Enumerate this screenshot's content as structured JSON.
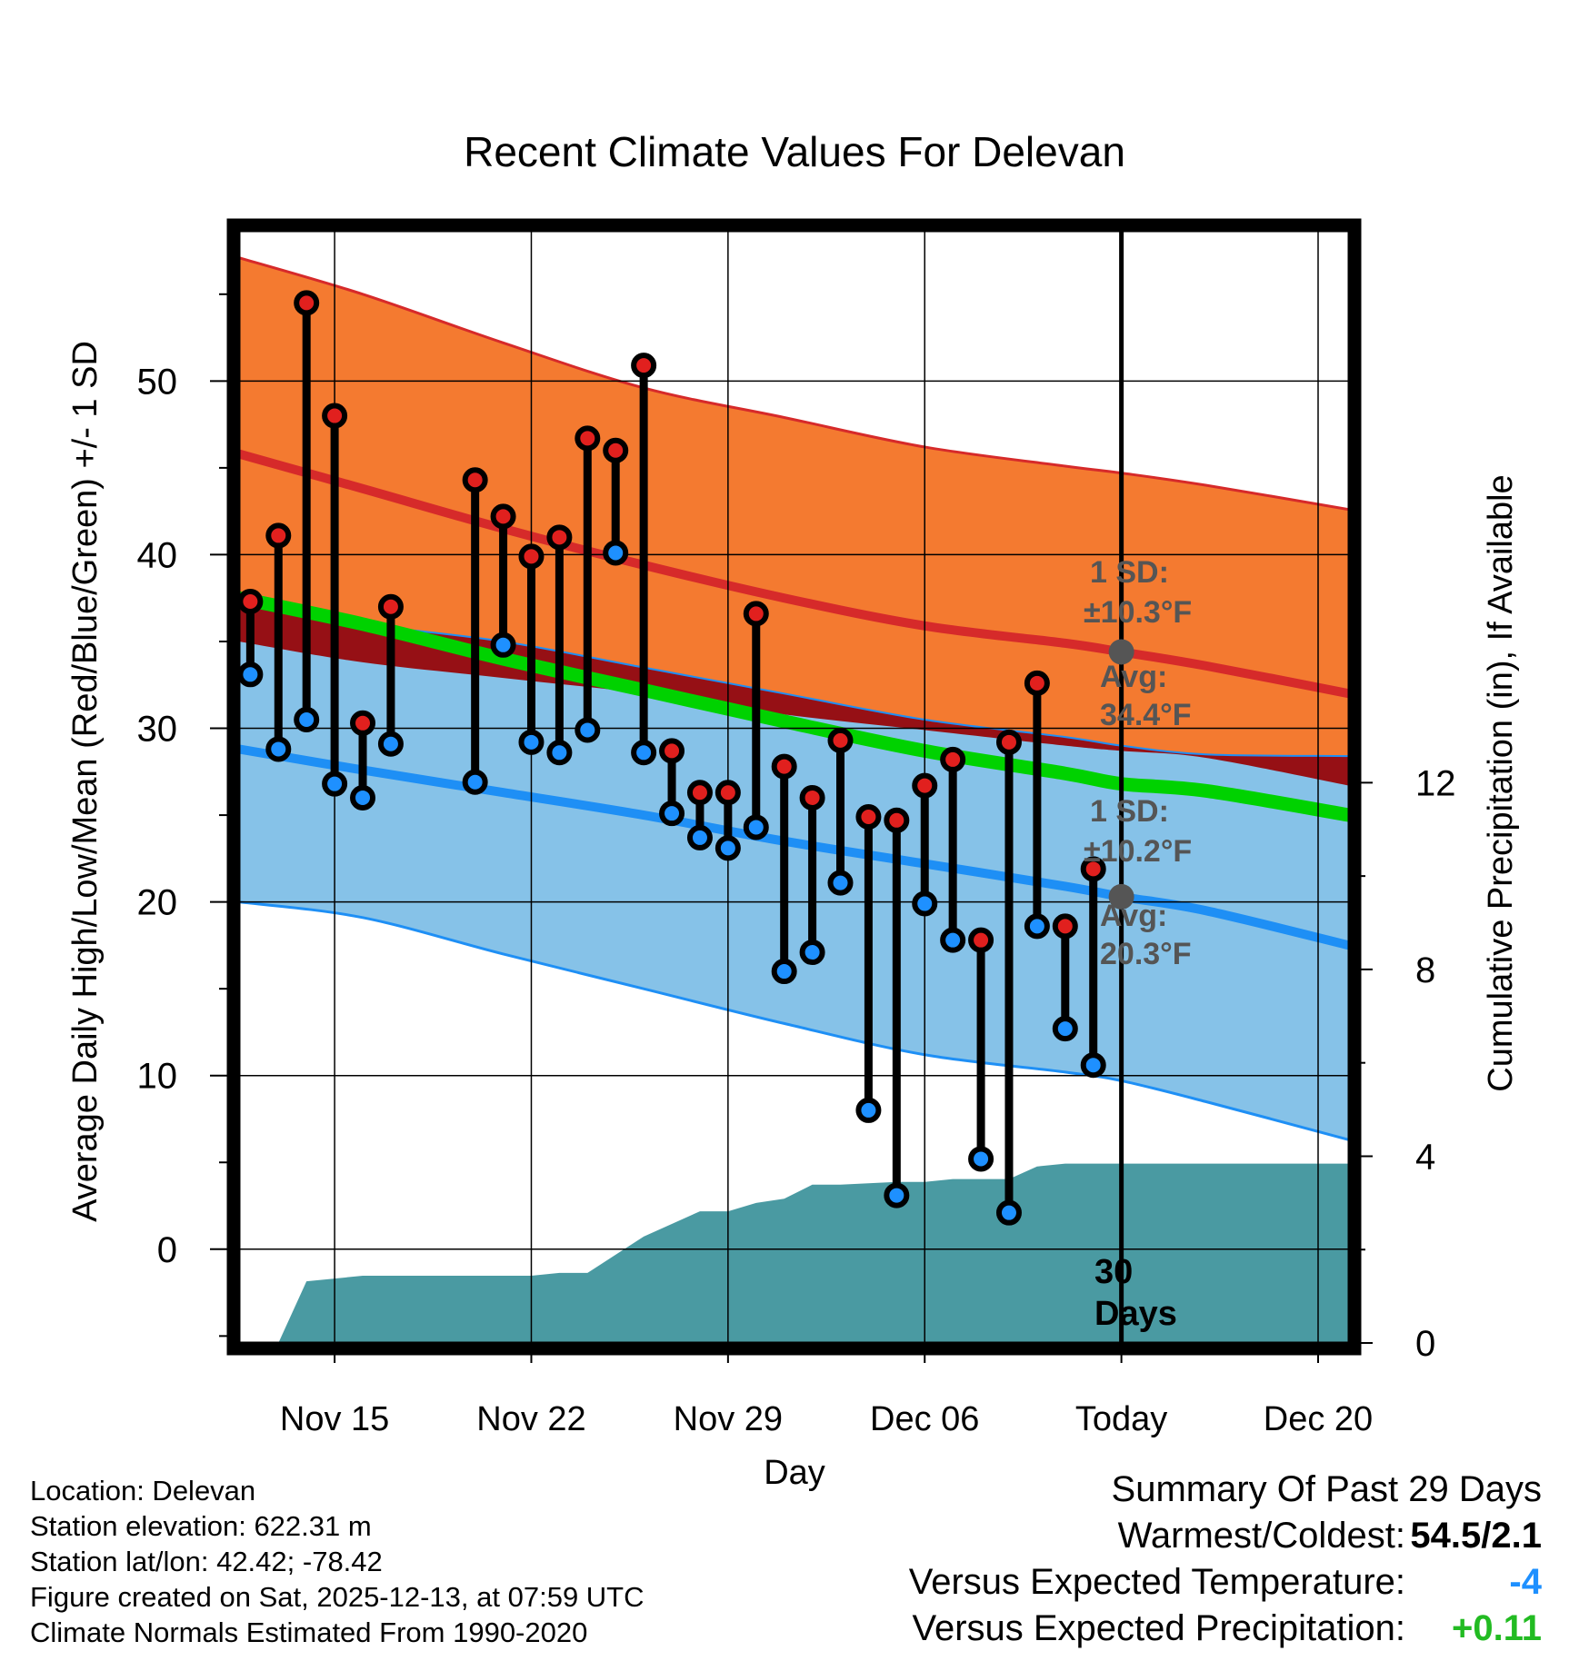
{
  "chart_data": {
    "type": "line",
    "title": "Recent Climate Values For Delevan",
    "xlabel": "Day",
    "ylabel": "Average Daily High/Low/Mean (Red/Blue/Green) +/- 1 SD",
    "y2label": "Cumulative Precipitation (in), If Available",
    "ylim": [
      -5.4,
      58.6
    ],
    "y2lim": [
      0,
      23.8
    ],
    "xlim": [
      10.6,
      50.1
    ],
    "x_day_unit": "days since Nov 1 (Nov 15 = 14)",
    "x_ticks": [
      {
        "x": 14,
        "label": "Nov 15"
      },
      {
        "x": 21,
        "label": "Nov 22"
      },
      {
        "x": 28,
        "label": "Nov 29"
      },
      {
        "x": 35,
        "label": "Dec 06"
      },
      {
        "x": 42,
        "label": "Today"
      },
      {
        "x": 49,
        "label": "Dec 20"
      }
    ],
    "y_ticks": [
      0,
      10,
      20,
      30,
      40,
      50
    ],
    "y2_ticks": [
      0,
      4,
      8,
      12
    ],
    "today_x": 42,
    "today_label": "30\nDays",
    "normals": {
      "x": [
        10.6,
        15,
        20,
        25,
        30,
        35,
        40,
        42,
        45,
        50.1
      ],
      "high_mean": [
        45.8,
        43.8,
        41.5,
        39.4,
        37.5,
        35.9,
        34.9,
        34.4,
        33.6,
        32.0
      ],
      "high_upper": [
        57.1,
        55.0,
        52.2,
        49.6,
        47.9,
        46.2,
        45.1,
        44.7,
        44.0,
        42.6
      ],
      "high_lower": [
        35.0,
        33.8,
        32.9,
        32.0,
        30.8,
        29.9,
        29.0,
        28.7,
        28.3,
        26.7
      ],
      "mean": [
        37.5,
        36.0,
        34.0,
        32.2,
        30.4,
        28.7,
        27.4,
        26.8,
        26.4,
        25.0
      ],
      "low_mean": [
        28.8,
        27.6,
        26.3,
        25.0,
        23.5,
        22.2,
        20.9,
        20.3,
        19.5,
        17.5
      ],
      "low_upper": [
        37.2,
        36.0,
        35.0,
        33.5,
        32.0,
        30.5,
        29.5,
        29.0,
        28.5,
        28.4
      ],
      "low_lower": [
        20.0,
        19.1,
        17.0,
        15.0,
        13.0,
        11.2,
        10.2,
        9.7,
        8.5,
        6.3
      ]
    },
    "series": [
      {
        "name": "Daily High",
        "color": "#e1201e",
        "x": [
          11,
          12,
          13,
          14,
          15,
          16,
          17,
          19,
          20,
          21,
          22,
          23,
          24,
          25,
          26,
          27,
          28,
          29,
          30,
          31,
          32,
          33,
          34,
          35,
          36,
          37,
          38,
          39,
          40,
          41
        ],
        "values": [
          37.3,
          41.1,
          54.5,
          48.0,
          30.3,
          37.0,
          null,
          44.3,
          42.2,
          39.9,
          41.0,
          46.7,
          46.0,
          50.9,
          28.7,
          26.3,
          26.3,
          36.6,
          27.8,
          26.0,
          29.3,
          24.9,
          24.7,
          26.7,
          28.2,
          17.8,
          29.2,
          32.6,
          18.6,
          21.9
        ]
      },
      {
        "name": "Daily Low",
        "color": "#1e90ff",
        "x": [
          11,
          12,
          13,
          14,
          15,
          16,
          17,
          19,
          20,
          21,
          22,
          23,
          24,
          25,
          26,
          27,
          28,
          29,
          30,
          31,
          32,
          33,
          34,
          35,
          36,
          37,
          38,
          39,
          40,
          41
        ],
        "values": [
          33.1,
          28.8,
          30.5,
          26.8,
          26.0,
          29.1,
          null,
          26.9,
          34.8,
          29.2,
          28.6,
          29.9,
          40.1,
          28.6,
          25.1,
          23.7,
          23.1,
          24.3,
          16.0,
          17.1,
          21.1,
          8.0,
          3.1,
          19.9,
          17.8,
          5.2,
          2.1,
          18.6,
          12.7,
          10.6
        ]
      }
    ],
    "precip_cumulative": {
      "x": [
        12,
        13,
        14,
        15,
        16,
        17,
        18,
        19,
        20,
        21,
        22,
        23,
        24,
        25,
        26,
        27,
        28,
        29,
        30,
        31,
        32,
        33,
        34,
        35,
        36,
        37,
        38,
        39,
        40,
        41,
        42,
        50.1
      ],
      "values": [
        0,
        1.32,
        1.38,
        1.44,
        1.44,
        1.44,
        1.44,
        1.44,
        1.44,
        1.44,
        1.5,
        1.5,
        1.89,
        2.28,
        2.55,
        2.82,
        2.82,
        3.0,
        3.09,
        3.39,
        3.39,
        3.42,
        3.45,
        3.45,
        3.51,
        3.51,
        3.51,
        3.78,
        3.84,
        3.84,
        3.84,
        3.84
      ]
    },
    "annotations": {
      "high_sd_label": "1 SD:",
      "high_sd_value": "±10.3°F",
      "high_avg_label": "Avg:",
      "high_avg_value": "34.4°F",
      "low_sd_label": "1 SD:",
      "low_sd_value": "±10.2°F",
      "low_avg_label": "Avg:",
      "low_avg_value": "20.3°F"
    },
    "colors": {
      "high_band": "#f47a30",
      "high_line": "#d62a2a",
      "low_band": "#86c2e8",
      "low_line": "#1e8ff5",
      "overlap": "#961015",
      "mean_line": "#00d200",
      "precip": "#4a9aa2",
      "marker_gray": "#555555"
    }
  },
  "station_info": {
    "location": "Location: Delevan",
    "elevation": "Station elevation: 622.31 m",
    "latlon": "Station lat/lon: 42.42; -78.42",
    "created": "Figure created on Sat, 2025-12-13, at 07:59 UTC",
    "normals": "Climate Normals Estimated From 1990-2020"
  },
  "summary": {
    "title": "Summary Of Past 29 Days",
    "warm_cold_label": "Warmest/Coldest:",
    "warm_cold_value": "54.5/2.1",
    "temp_label": "Versus Expected Temperature:",
    "temp_value": "-4",
    "temp_color": "#1e90ff",
    "precip_label": "Versus Expected Precipitation:",
    "precip_value": "+0.11",
    "precip_color": "#22bb22"
  }
}
